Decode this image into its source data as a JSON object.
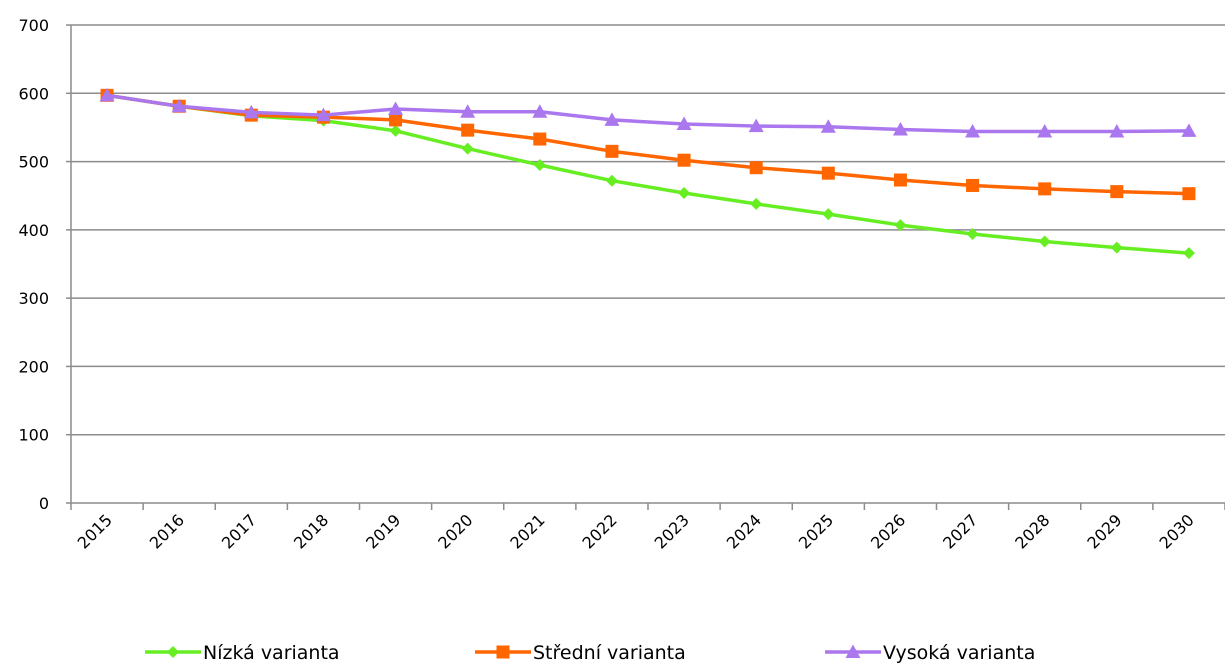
{
  "chart_data": {
    "type": "line",
    "title": "",
    "xlabel": "",
    "ylabel": "",
    "categories": [
      "2015",
      "2016",
      "2017",
      "2018",
      "2019",
      "2020",
      "2021",
      "2022",
      "2023",
      "2024",
      "2025",
      "2026",
      "2027",
      "2028",
      "2029",
      "2030"
    ],
    "ylim": [
      0,
      700
    ],
    "yticks": [
      "0",
      "100",
      "200",
      "300",
      "400",
      "500",
      "600",
      "700"
    ],
    "grid": "horizontal",
    "legend": "bottom",
    "series": [
      {
        "name": "Nízká varianta",
        "color": "#66ee22",
        "marker": "diamond",
        "values": [
          597,
          581,
          567,
          560,
          545,
          519,
          495,
          472,
          454,
          438,
          423,
          407,
          394,
          383,
          374,
          366
        ]
      },
      {
        "name": "Střední varianta",
        "color": "#ff6600",
        "marker": "square",
        "values": [
          597,
          581,
          568,
          565,
          561,
          546,
          533,
          515,
          502,
          491,
          483,
          473,
          465,
          460,
          456,
          453
        ]
      },
      {
        "name": "Vysoká varianta",
        "color": "#aa77ee",
        "marker": "triangle",
        "values": [
          597,
          581,
          572,
          568,
          577,
          573,
          573,
          561,
          555,
          552,
          551,
          547,
          544,
          544,
          544,
          545
        ]
      }
    ]
  }
}
